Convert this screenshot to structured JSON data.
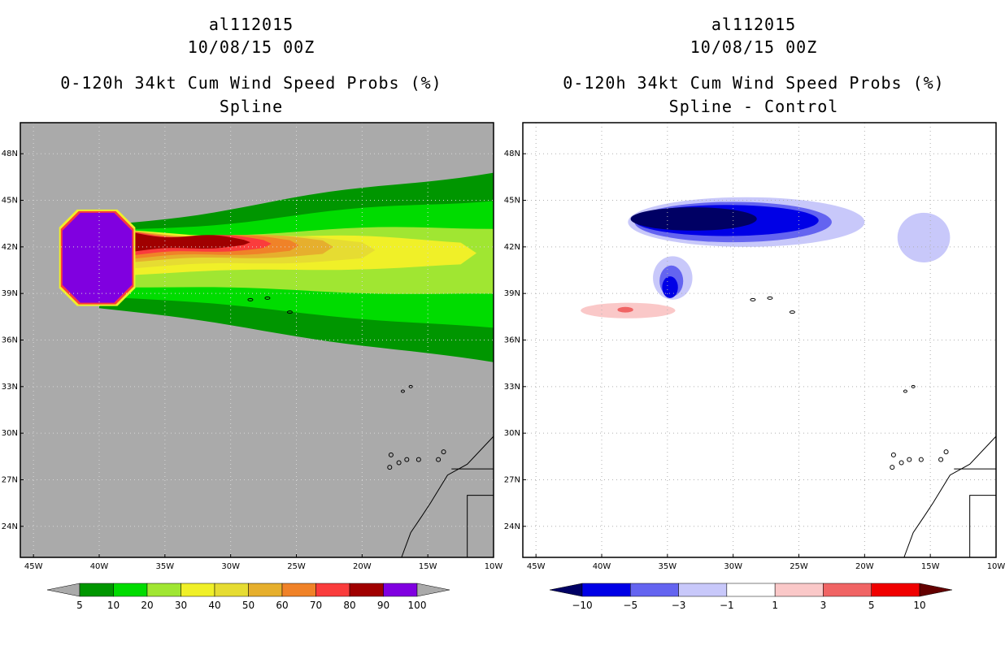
{
  "chart_data": [
    {
      "type": "heatmap",
      "title_lines": [
        "al112015",
        "10/08/15 00Z",
        "0-120h 34kt Cum Wind Speed Probs (%)",
        "Spline"
      ],
      "xlim": [
        -46,
        -10
      ],
      "ylim": [
        22,
        50
      ],
      "xticks": [
        -45,
        -40,
        -35,
        -30,
        -25,
        -20,
        -15,
        -10
      ],
      "xtick_labels": [
        "45W",
        "40W",
        "35W",
        "30W",
        "25W",
        "20W",
        "15W",
        "10W"
      ],
      "yticks": [
        24,
        27,
        30,
        33,
        36,
        39,
        42,
        45,
        48
      ],
      "ytick_labels": [
        "24N",
        "27N",
        "30N",
        "33N",
        "36N",
        "39N",
        "42N",
        "45N",
        "48N"
      ],
      "background": "#aaaaaa",
      "grid": true,
      "colorbar": {
        "labels": [
          "5",
          "10",
          "20",
          "30",
          "40",
          "50",
          "60",
          "70",
          "80",
          "90",
          "100"
        ],
        "colors": [
          "#009600",
          "#00dc00",
          "#a0e632",
          "#f0f028",
          "#e6dc32",
          "#e6af2d",
          "#f08228",
          "#fa3c3c",
          "#a00000",
          "#8000e0"
        ],
        "extend_low_color": "#aaaaaa",
        "extend_high_color": "#aaaaaa"
      },
      "levels": [
        {
          "label": "5",
          "color": "#009600",
          "lon0": -40,
          "lon1": -10,
          "lat_c": 40.7,
          "hw0": 2.6,
          "hw1": 6.2,
          "tip": 0
        },
        {
          "label": "10",
          "color": "#00dc00",
          "lon0": -40,
          "lon1": -10,
          "lat_c": 40.9,
          "hw0": 2.0,
          "hw1": 4.2,
          "tip": 0
        },
        {
          "label": "20",
          "color": "#a0e632",
          "lon0": -40,
          "lon1": -10,
          "lat_c": 41.1,
          "hw0": 1.6,
          "hw1": 2.2,
          "tip": 0
        },
        {
          "label": "30",
          "color": "#f0f028",
          "lon0": -40,
          "lon1": -12.5,
          "lat_c": 41.6,
          "hw0": 1.4,
          "hw1": 0.8,
          "tip": 1.2
        },
        {
          "label": "40",
          "color": "#e6dc32",
          "lon0": -40,
          "lon1": -20,
          "lat_c": 41.8,
          "hw0": 1.2,
          "hw1": 0.6,
          "tip": 1.0
        },
        {
          "label": "50",
          "color": "#e6af2d",
          "lon0": -40,
          "lon1": -23,
          "lat_c": 42.0,
          "hw0": 1.0,
          "hw1": 0.5,
          "tip": 0.8
        },
        {
          "label": "60",
          "color": "#f08228",
          "lon0": -40,
          "lon1": -25.5,
          "lat_c": 42.1,
          "hw0": 0.9,
          "hw1": 0.4,
          "tip": 0.7
        },
        {
          "label": "70",
          "color": "#fa3c3c",
          "lon0": -40,
          "lon1": -27.5,
          "lat_c": 42.2,
          "hw0": 0.8,
          "hw1": 0.3,
          "tip": 0.6
        },
        {
          "label": "80",
          "color": "#a00000",
          "lon0": -40,
          "lon1": -29,
          "lat_c": 42.3,
          "hw0": 0.7,
          "hw1": 0.2,
          "tip": 0.5
        }
      ],
      "core_100": {
        "label": "100",
        "color": "#8000e0",
        "lon0": -42.8,
        "lon1": -37.5,
        "lat0": 38.4,
        "lat1": 44.2
      }
    },
    {
      "type": "heatmap",
      "title_lines": [
        "al112015",
        "10/08/15 00Z",
        "0-120h 34kt Cum Wind Speed Probs (%)",
        "Spline - Control"
      ],
      "xlim": [
        -46,
        -10
      ],
      "ylim": [
        22,
        50
      ],
      "xticks": [
        -45,
        -40,
        -35,
        -30,
        -25,
        -20,
        -15,
        -10
      ],
      "xtick_labels": [
        "45W",
        "40W",
        "35W",
        "30W",
        "25W",
        "20W",
        "15W",
        "10W"
      ],
      "yticks": [
        24,
        27,
        30,
        33,
        36,
        39,
        42,
        45,
        48
      ],
      "ytick_labels": [
        "24N",
        "27N",
        "30N",
        "33N",
        "36N",
        "39N",
        "42N",
        "45N",
        "48N"
      ],
      "background": "#ffffff",
      "grid": true,
      "colorbar": {
        "labels": [
          "−10",
          "−5",
          "−3",
          "−1",
          "1",
          "3",
          "5",
          "10"
        ],
        "colors": [
          "#0000e6",
          "#6464f0",
          "#c8c8fa",
          "#ffffff",
          "#fac8c8",
          "#f06464",
          "#f00000"
        ],
        "extend_low_color": "#000064",
        "extend_high_color": "#640000"
      },
      "blobs": [
        {
          "color": "#c8c8fa",
          "lon": -29,
          "lat": 43.6,
          "rx": 9,
          "ry": 1.6
        },
        {
          "color": "#c8c8fa",
          "lon": -15.5,
          "lat": 42.6,
          "rx": 2,
          "ry": 1.6
        },
        {
          "color": "#c8c8fa",
          "lon": -34.6,
          "lat": 40.0,
          "rx": 1.5,
          "ry": 1.4
        },
        {
          "color": "#6464f0",
          "lon": -30,
          "lat": 43.6,
          "rx": 7.5,
          "ry": 1.3
        },
        {
          "color": "#6464f0",
          "lon": -34.7,
          "lat": 39.8,
          "rx": 0.9,
          "ry": 1.0
        },
        {
          "color": "#0000e6",
          "lon": -30.5,
          "lat": 43.7,
          "rx": 7,
          "ry": 1.0
        },
        {
          "color": "#0000e6",
          "lon": -34.8,
          "lat": 39.4,
          "rx": 0.6,
          "ry": 0.7
        },
        {
          "color": "#000064",
          "lon": -33,
          "lat": 43.8,
          "rx": 4.8,
          "ry": 0.75
        },
        {
          "color": "#fac8c8",
          "lon": -38,
          "lat": 37.9,
          "rx": 3.6,
          "ry": 0.5
        },
        {
          "color": "#f06464",
          "lon": -38.2,
          "lat": 37.95,
          "rx": 0.6,
          "ry": 0.18
        }
      ]
    }
  ]
}
